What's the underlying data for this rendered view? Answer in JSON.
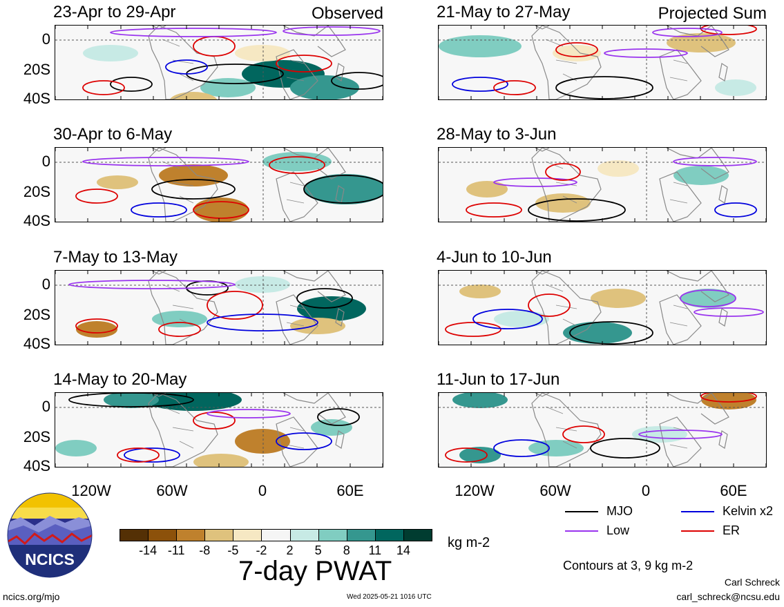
{
  "panels": [
    {
      "title": "23-Apr to 29-Apr",
      "label": "Observed"
    },
    {
      "title": "21-May to 27-May",
      "label": "Projected Sum"
    },
    {
      "title": "30-Apr to 6-May",
      "label": ""
    },
    {
      "title": "28-May to 3-Jun",
      "label": ""
    },
    {
      "title": "7-May to 13-May",
      "label": ""
    },
    {
      "title": "4-Jun to 10-Jun",
      "label": ""
    },
    {
      "title": "14-May to 20-May",
      "label": ""
    },
    {
      "title": "11-Jun to 17-Jun",
      "label": ""
    }
  ],
  "axes": {
    "y_ticks": [
      "0",
      "20S",
      "40S"
    ],
    "x_ticks": [
      "120W",
      "60W",
      "0",
      "60E"
    ]
  },
  "colorbar": {
    "title": "7-day PWAT",
    "units": "kg m-2",
    "tick_labels": [
      "-14",
      "-11",
      "-8",
      "-5",
      "-2",
      "2",
      "5",
      "8",
      "11",
      "14"
    ],
    "colors": [
      "#543005",
      "#8c510a",
      "#bf812d",
      "#dfc27d",
      "#f6e8c3",
      "#f5f5f5",
      "#c7eae5",
      "#80cdc1",
      "#35978f",
      "#01665e",
      "#003c30"
    ]
  },
  "legend": {
    "items": [
      {
        "label": "MJO",
        "color": "#000000"
      },
      {
        "label": "Kelvin x2",
        "color": "#0000dd"
      },
      {
        "label": "Low",
        "color": "#9933ee"
      },
      {
        "label": "ER",
        "color": "#dd0000"
      }
    ],
    "note": "Contours at 3, 9 kg m-2"
  },
  "logo": {
    "text": "NCICS"
  },
  "footer": {
    "site": "ncics.org/mjo",
    "timestamp": "Wed 2025-05-21 1016 UTC",
    "author": "Carl Schreck",
    "email": "carl_schreck@ncsu.edu"
  }
}
